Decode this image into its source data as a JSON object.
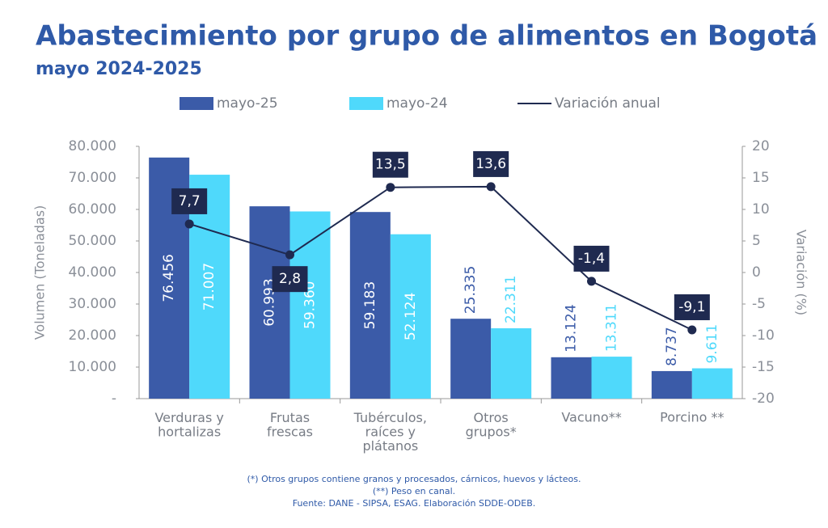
{
  "chart_data": {
    "type": "bar+line",
    "title": "Abastecimiento por grupo de alimentos en Bogotá",
    "subtitle": "mayo 2024-2025",
    "y_label": "Volumen (Toneladas)",
    "y2_label": "Variación (%)",
    "categories": [
      "Verduras y\nhortalizas",
      "Frutas\nfrescas",
      "Tubérculos,\nraíces y\nplátanos",
      "Otros\ngrupos*",
      "Vacuno**",
      "Porcino **"
    ],
    "series": [
      {
        "name": "mayo-25",
        "type": "bar",
        "color": "#3b5ba8",
        "values": [
          76456,
          60993,
          59183,
          25335,
          13124,
          8737
        ],
        "value_labels": [
          "76.456",
          "60.993",
          "59.183",
          "25.335",
          "13.124",
          "8.737"
        ]
      },
      {
        "name": "mayo-24",
        "type": "bar",
        "color": "#4fd9fb",
        "values": [
          71007,
          59360,
          52124,
          22311,
          13311,
          9611
        ],
        "value_labels": [
          "71.007",
          "59.360",
          "52.124",
          "22.311",
          "13.311",
          "9.611"
        ]
      },
      {
        "name": "Variación anual",
        "type": "line",
        "axis": "y2",
        "color": "#1f2a50",
        "values": [
          7.7,
          2.8,
          13.5,
          13.6,
          -1.4,
          -9.1
        ],
        "value_labels": [
          "7,7",
          "2,8",
          "13,5",
          "13,6",
          "-1,4",
          "-9,1"
        ]
      }
    ],
    "ylim": [
      0,
      80000
    ],
    "yticks": [
      {
        "value": 0,
        "label": "-"
      },
      {
        "value": 10000,
        "label": "10.000"
      },
      {
        "value": 20000,
        "label": "20.000"
      },
      {
        "value": 30000,
        "label": "30.000"
      },
      {
        "value": 40000,
        "label": "40.000"
      },
      {
        "value": 50000,
        "label": "50.000"
      },
      {
        "value": 60000,
        "label": "60.000"
      },
      {
        "value": 70000,
        "label": "70.000"
      },
      {
        "value": 80000,
        "label": "80.000"
      }
    ],
    "y2lim": [
      -20,
      20
    ],
    "y2ticks": [
      -20,
      -15,
      -10,
      -5,
      0,
      5,
      10,
      15,
      20
    ],
    "notes": [
      "(*) Otros grupos contiene granos y procesados, cárnicos, huevos y lácteos.",
      "(**) Peso en canal.",
      "Fuente: DANE - SIPSA, ESAG. Elaboración SDDE-ODEB."
    ]
  }
}
